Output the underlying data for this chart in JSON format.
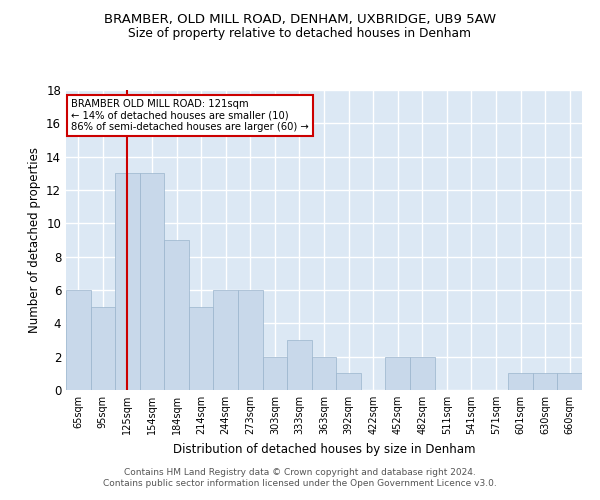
{
  "title": "BRAMBER, OLD MILL ROAD, DENHAM, UXBRIDGE, UB9 5AW",
  "subtitle": "Size of property relative to detached houses in Denham",
  "xlabel": "Distribution of detached houses by size in Denham",
  "ylabel": "Number of detached properties",
  "categories": [
    "65sqm",
    "95sqm",
    "125sqm",
    "154sqm",
    "184sqm",
    "214sqm",
    "244sqm",
    "273sqm",
    "303sqm",
    "333sqm",
    "363sqm",
    "392sqm",
    "422sqm",
    "452sqm",
    "482sqm",
    "511sqm",
    "541sqm",
    "571sqm",
    "601sqm",
    "630sqm",
    "660sqm"
  ],
  "values": [
    6,
    5,
    13,
    13,
    9,
    5,
    6,
    6,
    2,
    3,
    2,
    1,
    0,
    2,
    2,
    0,
    0,
    0,
    1,
    1,
    1
  ],
  "bar_color": "#c8d8ea",
  "bar_edge_color": "#9ab4cc",
  "highlight_index": 2,
  "highlight_color": "#cc0000",
  "annotation_line1": "BRAMBER OLD MILL ROAD: 121sqm",
  "annotation_line2": "← 14% of detached houses are smaller (10)",
  "annotation_line3": "86% of semi-detached houses are larger (60) →",
  "annotation_box_color": "white",
  "annotation_box_edge": "#cc0000",
  "ylim": [
    0,
    18
  ],
  "yticks": [
    0,
    2,
    4,
    6,
    8,
    10,
    12,
    14,
    16,
    18
  ],
  "footer_line1": "Contains HM Land Registry data © Crown copyright and database right 2024.",
  "footer_line2": "Contains public sector information licensed under the Open Government Licence v3.0.",
  "bg_color": "#dce8f4",
  "grid_color": "white"
}
